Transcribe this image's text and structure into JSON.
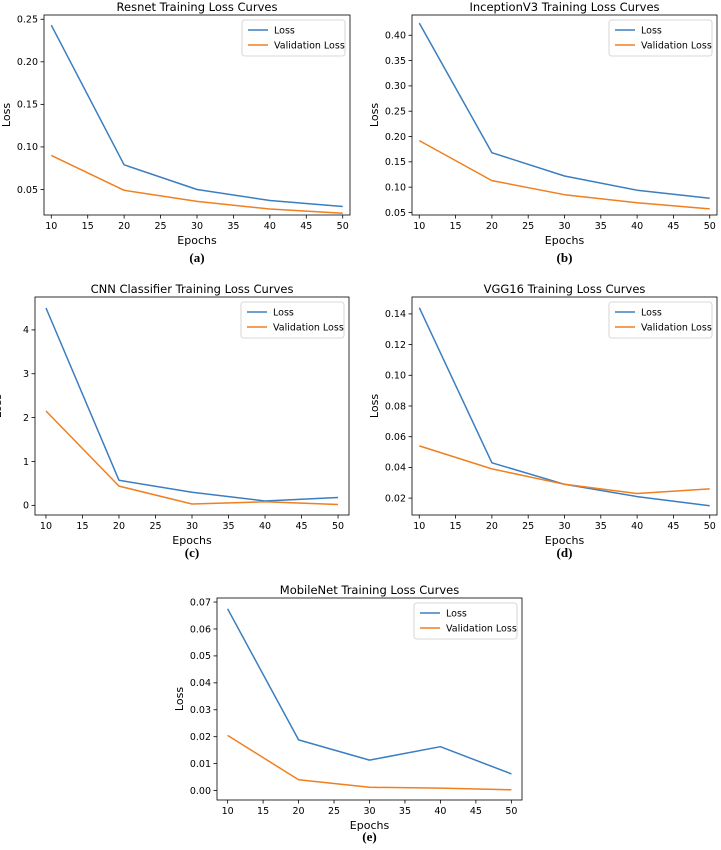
{
  "colors": {
    "loss": "#3b7ec0",
    "validation": "#f07f1f"
  },
  "chart_data": [
    {
      "id": "a",
      "panel_label": "(a)",
      "type": "line",
      "title": "Resnet Training Loss Curves",
      "xlabel": "Epochs",
      "ylabel": "Loss",
      "x": [
        10,
        20,
        30,
        40,
        50
      ],
      "xlim": [
        9,
        51
      ],
      "ylim": [
        0.02,
        0.255
      ],
      "xticks": [
        10,
        15,
        20,
        25,
        30,
        35,
        40,
        45,
        50
      ],
      "yticks": [
        0.05,
        0.1,
        0.15,
        0.2,
        0.25
      ],
      "ytick_labels": [
        "0.05",
        "0.10",
        "0.15",
        "0.20",
        "0.25"
      ],
      "legend": "top-right",
      "series": [
        {
          "name": "Loss",
          "color": "#3b7ec0",
          "values": [
            0.243,
            0.079,
            0.05,
            0.037,
            0.03
          ]
        },
        {
          "name": "Validation Loss",
          "color": "#f07f1f",
          "values": [
            0.09,
            0.049,
            0.036,
            0.027,
            0.022
          ]
        }
      ]
    },
    {
      "id": "b",
      "panel_label": "(b)",
      "type": "line",
      "title": "InceptionV3 Training Loss Curves",
      "xlabel": "Epochs",
      "ylabel": "Loss",
      "x": [
        10,
        20,
        30,
        40,
        50
      ],
      "xlim": [
        9,
        51
      ],
      "ylim": [
        0.045,
        0.44
      ],
      "xticks": [
        10,
        15,
        20,
        25,
        30,
        35,
        40,
        45,
        50
      ],
      "yticks": [
        0.05,
        0.1,
        0.15,
        0.2,
        0.25,
        0.3,
        0.35,
        0.4
      ],
      "ytick_labels": [
        "0.05",
        "0.10",
        "0.15",
        "0.20",
        "0.25",
        "0.30",
        "0.35",
        "0.40"
      ],
      "legend": "top-right",
      "series": [
        {
          "name": "Loss",
          "color": "#3b7ec0",
          "values": [
            0.424,
            0.168,
            0.122,
            0.094,
            0.078
          ]
        },
        {
          "name": "Validation Loss",
          "color": "#f07f1f",
          "values": [
            0.192,
            0.113,
            0.085,
            0.069,
            0.057
          ]
        }
      ]
    },
    {
      "id": "c",
      "panel_label": "(c)",
      "type": "line",
      "title": "CNN Classifier Training Loss Curves",
      "xlabel": "Epochs",
      "ylabel": "Loss",
      "x": [
        10,
        20,
        30,
        40,
        50
      ],
      "xlim": [
        8.5,
        51.5
      ],
      "ylim": [
        -0.22,
        4.75
      ],
      "xticks": [
        10,
        15,
        20,
        25,
        30,
        35,
        40,
        45,
        50
      ],
      "yticks": [
        0,
        1,
        2,
        3,
        4
      ],
      "ytick_labels": [
        "0",
        "1",
        "2",
        "3",
        "4"
      ],
      "legend": "top-right",
      "series": [
        {
          "name": "Loss",
          "color": "#3b7ec0",
          "values": [
            4.5,
            0.57,
            0.3,
            0.1,
            0.18
          ]
        },
        {
          "name": "Validation Loss",
          "color": "#f07f1f",
          "values": [
            2.15,
            0.44,
            0.03,
            0.08,
            0.02
          ]
        }
      ]
    },
    {
      "id": "d",
      "panel_label": "(d)",
      "type": "line",
      "title": "VGG16 Training Loss Curves",
      "xlabel": "Epochs",
      "ylabel": "Loss",
      "x": [
        10,
        20,
        30,
        40,
        50
      ],
      "xlim": [
        9,
        51
      ],
      "ylim": [
        0.009,
        0.151
      ],
      "xticks": [
        10,
        15,
        20,
        25,
        30,
        35,
        40,
        45,
        50
      ],
      "yticks": [
        0.02,
        0.04,
        0.06,
        0.08,
        0.1,
        0.12,
        0.14
      ],
      "ytick_labels": [
        "0.02",
        "0.04",
        "0.06",
        "0.08",
        "0.10",
        "0.12",
        "0.14"
      ],
      "legend": "top-right",
      "series": [
        {
          "name": "Loss",
          "color": "#3b7ec0",
          "values": [
            0.144,
            0.043,
            0.029,
            0.021,
            0.015
          ]
        },
        {
          "name": "Validation Loss",
          "color": "#f07f1f",
          "values": [
            0.054,
            0.039,
            0.029,
            0.023,
            0.026
          ]
        }
      ]
    },
    {
      "id": "e",
      "panel_label": "(e)",
      "type": "line",
      "title": "MobileNet Training Loss Curves",
      "xlabel": "Epochs",
      "ylabel": "Loss",
      "x": [
        10,
        20,
        30,
        40,
        50
      ],
      "xlim": [
        8.5,
        51.5
      ],
      "ylim": [
        -0.0035,
        0.0715
      ],
      "xticks": [
        10,
        15,
        20,
        25,
        30,
        35,
        40,
        45,
        50
      ],
      "yticks": [
        0.0,
        0.01,
        0.02,
        0.03,
        0.04,
        0.05,
        0.06,
        0.07
      ],
      "ytick_labels": [
        "0.00",
        "0.01",
        "0.02",
        "0.03",
        "0.04",
        "0.05",
        "0.06",
        "0.07"
      ],
      "legend": "top-right",
      "series": [
        {
          "name": "Loss",
          "color": "#3b7ec0",
          "values": [
            0.0675,
            0.0188,
            0.0113,
            0.0163,
            0.0062
          ]
        },
        {
          "name": "Validation Loss",
          "color": "#f07f1f",
          "values": [
            0.0205,
            0.004,
            0.0012,
            0.0009,
            0.0003
          ]
        }
      ]
    }
  ]
}
